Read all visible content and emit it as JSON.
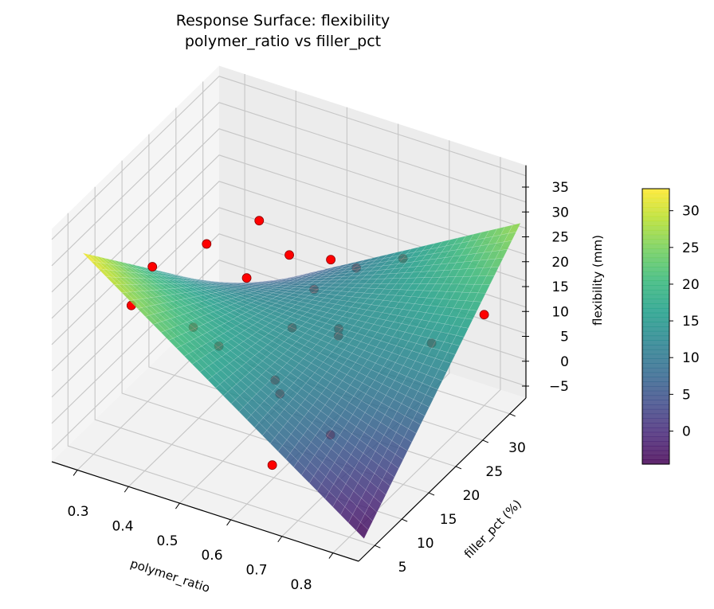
{
  "chart_data": {
    "type": "surface3d+scatter",
    "title": "Response Surface: flexibility",
    "subtitle": "polymer_ratio vs filler_pct",
    "xlabel": "polymer_ratio",
    "ylabel": "filler_pct (%)",
    "zlabel": "flexibility (mm)",
    "x_ticks": [
      "0.3",
      "0.4",
      "0.5",
      "0.6",
      "0.7",
      "0.8"
    ],
    "y_ticks": [
      "5",
      "10",
      "15",
      "20",
      "25",
      "30"
    ],
    "z_ticks": [
      "−5",
      "0",
      "5",
      "10",
      "15",
      "20",
      "25",
      "30",
      "35"
    ],
    "xlim": [
      0.25,
      0.85
    ],
    "ylim": [
      2,
      33
    ],
    "zlim": [
      -7.3,
      37
    ],
    "colormap": "viridis",
    "surface_alpha": 0.85,
    "surface_corners": {
      "x_range": [
        0.3,
        0.85
      ],
      "y_range": [
        3,
        32
      ],
      "z_at_xmin_ymin": 33,
      "z_at_xmax_ymin": -4,
      "z_at_xmax_ymax": 27,
      "z_at_xmin_ymax": -3
    },
    "points_above_color": "#ff0000",
    "points_below_color": "#555555",
    "points": [
      {
        "x": 0.31,
        "y": 25,
        "z": 13
      },
      {
        "x": 0.36,
        "y": 30,
        "z": 14
      },
      {
        "x": 0.3,
        "y": 12,
        "z": 14
      },
      {
        "x": 0.32,
        "y": 14,
        "z": 20
      },
      {
        "x": 0.4,
        "y": 14,
        "z": 11
      },
      {
        "x": 0.45,
        "y": 14,
        "z": 9
      },
      {
        "x": 0.42,
        "y": 22,
        "z": 13
      },
      {
        "x": 0.44,
        "y": 28,
        "z": 12
      },
      {
        "x": 0.52,
        "y": 25,
        "z": 11
      },
      {
        "x": 0.5,
        "y": 30,
        "z": 11
      },
      {
        "x": 0.55,
        "y": 30,
        "z": 11
      },
      {
        "x": 0.53,
        "y": 20,
        "z": 9
      },
      {
        "x": 0.6,
        "y": 22,
        "z": 9
      },
      {
        "x": 0.61,
        "y": 21,
        "z": 9
      },
      {
        "x": 0.56,
        "y": 14,
        "z": 6
      },
      {
        "x": 0.58,
        "y": 13,
        "z": 5
      },
      {
        "x": 0.62,
        "y": 32,
        "z": 13
      },
      {
        "x": 0.66,
        "y": 4,
        "z": 3
      },
      {
        "x": 0.7,
        "y": 11,
        "z": 3
      },
      {
        "x": 0.75,
        "y": 25,
        "z": 8
      },
      {
        "x": 0.8,
        "y": 30,
        "z": 10
      }
    ],
    "colorbar": {
      "min": -4.5,
      "max": 33,
      "ticks": [
        "0",
        "5",
        "10",
        "15",
        "20",
        "25",
        "30"
      ]
    },
    "grid": true
  }
}
